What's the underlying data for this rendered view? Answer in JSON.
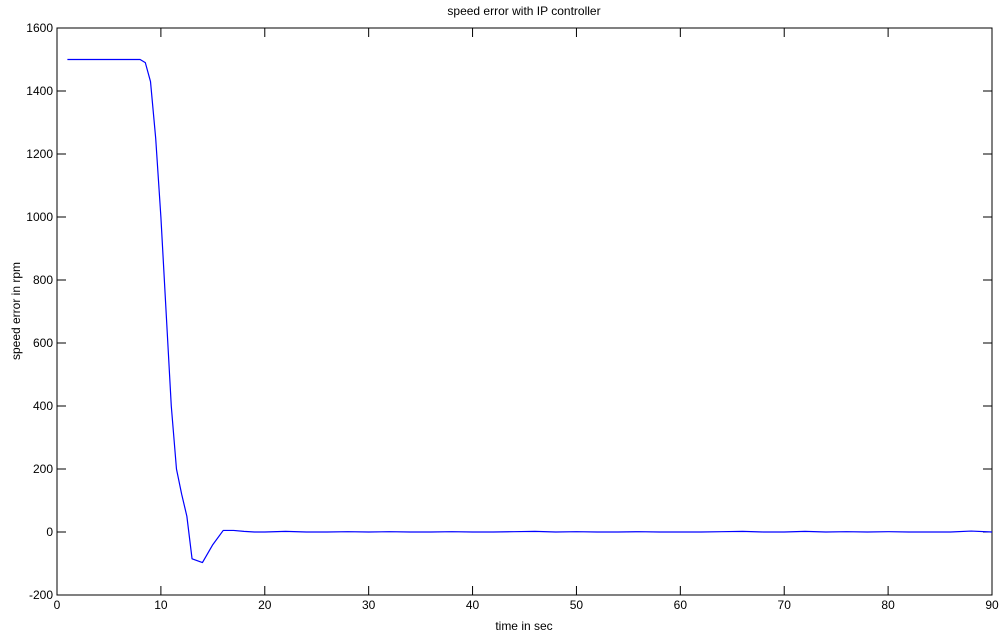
{
  "chart_data": {
    "type": "line",
    "title": "speed error with IP controller",
    "xlabel": "time in sec",
    "ylabel": "speed error in rpm",
    "xlim": [
      0,
      90
    ],
    "ylim": [
      -200,
      1600
    ],
    "xticks": [
      0,
      10,
      20,
      30,
      40,
      50,
      60,
      70,
      80,
      90
    ],
    "yticks": [
      -200,
      0,
      200,
      400,
      600,
      800,
      1000,
      1200,
      1400,
      1600
    ],
    "grid": false,
    "line_color": "#0000ff",
    "series": [
      {
        "x": [
          1,
          2,
          4,
          6,
          8,
          8.5,
          9,
          9.5,
          10,
          10.5,
          11,
          11.5,
          12,
          12.5,
          13,
          14,
          15,
          16,
          17,
          18,
          19,
          20,
          22,
          24,
          26,
          28,
          30,
          32,
          34,
          36,
          38,
          40,
          42,
          44,
          46,
          48,
          50,
          52,
          54,
          56,
          58,
          60,
          62,
          64,
          66,
          68,
          70,
          72,
          74,
          76,
          78,
          80,
          82,
          84,
          86,
          88,
          90
        ],
        "y": [
          1500,
          1500,
          1500,
          1500,
          1500,
          1490,
          1430,
          1250,
          1000,
          700,
          400,
          200,
          120,
          50,
          -85,
          -97,
          -40,
          5,
          5,
          2,
          0,
          0,
          2,
          0,
          0,
          1,
          0,
          1,
          0,
          0,
          1,
          0,
          0,
          1,
          2,
          0,
          1,
          0,
          0,
          1,
          0,
          0,
          0,
          1,
          2,
          0,
          0,
          2,
          0,
          1,
          0,
          1,
          0,
          0,
          0,
          3,
          0
        ]
      }
    ]
  }
}
